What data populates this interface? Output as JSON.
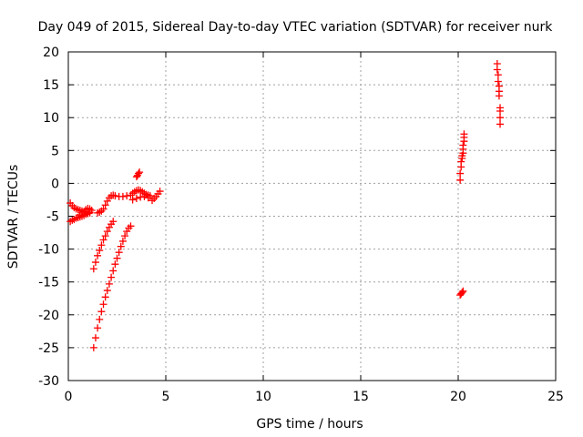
{
  "chart_data": {
    "type": "scatter",
    "title": "Day 049 of 2015, Sidereal Day-to-day VTEC variation (SDTVAR) for receiver nurk",
    "xlabel": "GPS time / hours",
    "ylabel": "SDTVAR / TECUs",
    "xlim": [
      0,
      25
    ],
    "ylim": [
      -30,
      20
    ],
    "xticks": [
      0,
      5,
      10,
      15,
      20,
      25
    ],
    "yticks": [
      -30,
      -25,
      -20,
      -15,
      -10,
      -5,
      0,
      5,
      10,
      15,
      20
    ],
    "grid": true,
    "legend": "none",
    "marker": "plus",
    "color": "#ff0000",
    "segments": [
      {
        "x": [
          0.1,
          0.2,
          0.3,
          0.4,
          0.5,
          0.6,
          0.7,
          0.8,
          0.9,
          1.0,
          1.1
        ],
        "y": [
          -3.0,
          -3.4,
          -3.7,
          -3.9,
          -4.0,
          -4.1,
          -4.2,
          -4.3,
          -4.3,
          -4.4,
          -4.4
        ]
      },
      {
        "x": [
          0.1,
          0.2,
          0.3,
          0.4,
          0.5,
          0.6,
          0.7,
          0.8,
          0.9,
          1.0,
          1.1
        ],
        "y": [
          -5.8,
          -5.6,
          -5.5,
          -5.3,
          -5.2,
          -5.1,
          -5.0,
          -4.9,
          -4.7,
          -4.6,
          -4.5
        ]
      },
      {
        "x": [
          0.6,
          0.7,
          0.8,
          0.9,
          1.0,
          1.1,
          1.2
        ],
        "y": [
          -4.8,
          -4.5,
          -4.3,
          -4.0,
          -3.8,
          -3.9,
          -4.1
        ]
      },
      {
        "x": [
          1.5,
          1.6,
          1.7,
          1.8,
          1.9,
          2.0,
          2.1,
          2.2,
          2.3,
          2.4,
          2.6,
          2.8,
          3.0,
          3.2
        ],
        "y": [
          -4.5,
          -4.4,
          -4.2,
          -3.9,
          -3.3,
          -2.7,
          -2.2,
          -1.9,
          -1.8,
          -1.9,
          -2.0,
          -2.0,
          -1.9,
          -1.8
        ]
      },
      {
        "x": [
          1.3,
          1.4,
          1.5,
          1.6,
          1.7,
          1.8,
          1.9,
          2.0,
          2.1,
          2.2,
          2.3
        ],
        "y": [
          -13.0,
          -12.0,
          -11.0,
          -10.2,
          -9.4,
          -8.6,
          -8.0,
          -7.3,
          -6.7,
          -6.2,
          -5.8
        ]
      },
      {
        "x": [
          1.3,
          1.4,
          1.5,
          1.6,
          1.7,
          1.8,
          1.9,
          2.0,
          2.1,
          2.2,
          2.3,
          2.4,
          2.5,
          2.6,
          2.7,
          2.8,
          2.9,
          3.0,
          3.1,
          3.2
        ],
        "y": [
          -25.0,
          -23.5,
          -22.0,
          -20.7,
          -19.5,
          -18.4,
          -17.3,
          -16.3,
          -15.3,
          -14.3,
          -13.3,
          -12.3,
          -11.4,
          -10.5,
          -9.6,
          -8.8,
          -8.0,
          -7.3,
          -6.8,
          -6.5
        ]
      },
      {
        "x": [
          3.3,
          3.4,
          3.5,
          3.6,
          3.7,
          3.8,
          3.9,
          4.0,
          4.1,
          4.2
        ],
        "y": [
          -1.5,
          -1.3,
          -1.1,
          -1.0,
          -1.1,
          -1.3,
          -1.5,
          -1.7,
          -1.8,
          -1.9
        ]
      },
      {
        "x": [
          3.3,
          3.5,
          3.7,
          3.9,
          4.1
        ],
        "y": [
          -2.5,
          -2.3,
          -2.1,
          -2.0,
          -2.2
        ]
      },
      {
        "x": [
          3.5,
          3.55,
          3.6,
          3.65
        ],
        "y": [
          1.0,
          1.2,
          1.5,
          1.7
        ]
      },
      {
        "x": [
          4.3,
          4.4,
          4.5,
          4.6,
          4.7
        ],
        "y": [
          -2.6,
          -2.3,
          -2.0,
          -1.6,
          -1.2
        ]
      },
      {
        "x": [
          20.1,
          20.1,
          20.15,
          20.15,
          20.2,
          20.2,
          20.25,
          20.25,
          20.25,
          20.3,
          20.3,
          20.3
        ],
        "y": [
          0.5,
          1.5,
          2.5,
          3.3,
          3.8,
          4.2,
          4.6,
          5.2,
          5.8,
          6.4,
          7.0,
          7.5
        ]
      },
      {
        "x": [
          20.1,
          20.15,
          20.2,
          20.25
        ],
        "y": [
          -17.0,
          -16.8,
          -16.6,
          -16.4
        ]
      },
      {
        "x": [
          22.0,
          22.0,
          22.05,
          22.05,
          22.1,
          22.1,
          22.1,
          22.15,
          22.15,
          22.15,
          22.15
        ],
        "y": [
          18.2,
          17.3,
          16.5,
          15.5,
          14.8,
          14.0,
          13.3,
          11.5,
          11.0,
          10.0,
          9.0
        ]
      }
    ]
  }
}
